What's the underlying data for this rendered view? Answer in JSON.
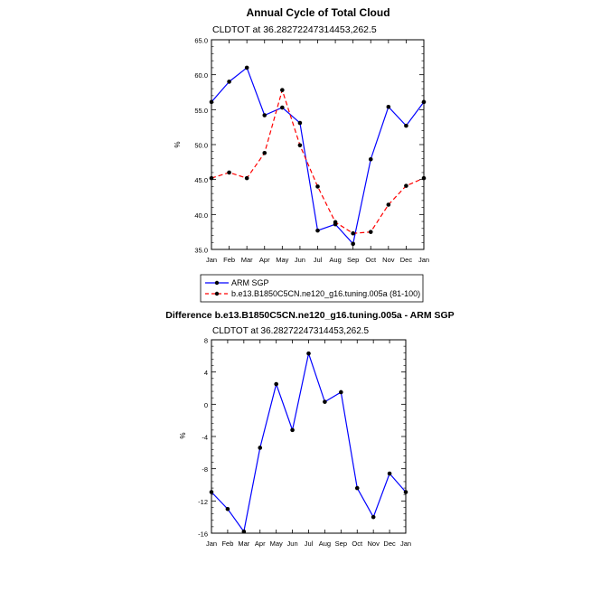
{
  "colors": {
    "obs": "#0000ff",
    "model": "#ff0000",
    "diff": "#0000ff",
    "marker": "#000000"
  },
  "chart_data": [
    {
      "type": "line",
      "title": "Annual Cycle of Total Cloud",
      "subtitle": "CLDTOT at 36.28272247314453,262.5",
      "ylabel": "%",
      "xlabel": "",
      "categories": [
        "Jan",
        "Feb",
        "Mar",
        "Apr",
        "May",
        "Jun",
        "Jul",
        "Aug",
        "Sep",
        "Oct",
        "Nov",
        "Dec",
        "Jan"
      ],
      "ylim": [
        35.0,
        65.0
      ],
      "yticks": [
        35.0,
        40.0,
        45.0,
        50.0,
        55.0,
        60.0,
        65.0
      ],
      "ytick_labels": [
        "35.0",
        "40.0",
        "45.0",
        "50.0",
        "55.0",
        "60.0",
        "65.0"
      ],
      "series": [
        {
          "name": "ARM SGP",
          "style": "solid",
          "values": [
            56.1,
            59.0,
            61.0,
            54.2,
            55.3,
            53.1,
            37.7,
            38.6,
            35.8,
            47.9,
            55.4,
            52.7,
            56.1
          ]
        },
        {
          "name": "b.e13.B1850C5CN.ne120_g16.tuning.005a (81-100)",
          "style": "dashed",
          "values": [
            45.2,
            46.0,
            45.2,
            48.8,
            57.8,
            49.9,
            44.0,
            38.9,
            37.3,
            37.5,
            41.4,
            44.1,
            45.2
          ]
        }
      ]
    },
    {
      "type": "line",
      "title": "Difference b.e13.B1850C5CN.ne120_g16.tuning.005a - ARM SGP",
      "subtitle": "CLDTOT at 36.28272247314453,262.5",
      "ylabel": "%",
      "xlabel": "",
      "categories": [
        "Jan",
        "Feb",
        "Mar",
        "Apr",
        "May",
        "Jun",
        "Jul",
        "Aug",
        "Sep",
        "Oct",
        "Nov",
        "Dec",
        "Jan"
      ],
      "ylim": [
        -16,
        8
      ],
      "yticks": [
        -16,
        -12,
        -8,
        -4,
        0,
        4,
        8
      ],
      "ytick_labels": [
        "-16",
        "-12",
        "-8",
        "-4",
        "0",
        "4",
        "8"
      ],
      "series": [
        {
          "name": "Difference",
          "style": "solid",
          "values": [
            -10.9,
            -13.0,
            -15.8,
            -5.4,
            2.5,
            -3.2,
            6.3,
            0.3,
            1.5,
            -10.4,
            -14.0,
            -8.6,
            -10.9
          ]
        }
      ]
    }
  ]
}
